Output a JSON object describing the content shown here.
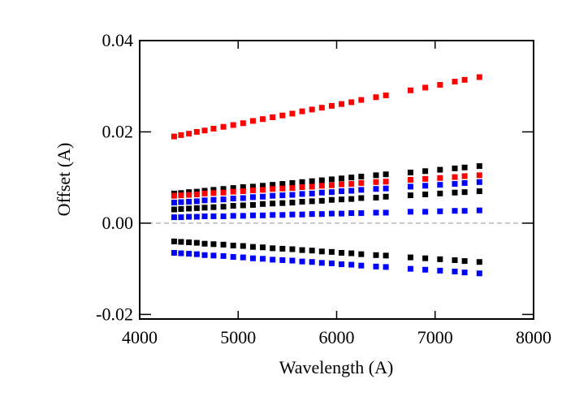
{
  "chart_data": {
    "type": "scatter",
    "xlabel": "Wavelength (A)",
    "ylabel": "Offset (A)",
    "xlim": [
      4000,
      8000
    ],
    "xticks": [
      4000,
      5000,
      6000,
      7000,
      8000
    ],
    "ylim": [
      -0.021,
      0.04
    ],
    "yticks": [
      0.04,
      0.02,
      {
        "value": 0,
        "label": "0.00"
      },
      -0.02
    ],
    "reference_line": 0,
    "x": [
      4350,
      4420,
      4500,
      4580,
      4660,
      4750,
      4850,
      4950,
      5050,
      5150,
      5250,
      5350,
      5450,
      5550,
      5650,
      5750,
      5850,
      5950,
      6050,
      6150,
      6250,
      6400,
      6500,
      6750,
      6900,
      7050,
      7200,
      7300,
      7450
    ],
    "series": [
      {
        "color": "#ff0000",
        "values": [
          0.019,
          0.0193,
          0.0196,
          0.02,
          0.0203,
          0.0207,
          0.0211,
          0.0215,
          0.0219,
          0.0224,
          0.0228,
          0.0232,
          0.0236,
          0.024,
          0.0245,
          0.0249,
          0.0253,
          0.0257,
          0.0261,
          0.0265,
          0.027,
          0.0276,
          0.028,
          0.0291,
          0.0297,
          0.0303,
          0.031,
          0.0314,
          0.032
        ]
      },
      {
        "color": "#000000",
        "values": [
          0.0065,
          0.0066,
          0.0068,
          0.0069,
          0.0071,
          0.0073,
          0.0075,
          0.0077,
          0.0079,
          0.008,
          0.0082,
          0.0084,
          0.0086,
          0.0088,
          0.009,
          0.0092,
          0.0094,
          0.0096,
          0.0098,
          0.01,
          0.0102,
          0.0105,
          0.0107,
          0.0111,
          0.0114,
          0.0117,
          0.012,
          0.0122,
          0.0125
        ]
      },
      {
        "color": "#ff0000",
        "values": [
          0.006,
          0.0061,
          0.0062,
          0.0063,
          0.0065,
          0.0066,
          0.0067,
          0.0069,
          0.007,
          0.0072,
          0.0073,
          0.0075,
          0.0076,
          0.0077,
          0.0079,
          0.008,
          0.0082,
          0.0083,
          0.0085,
          0.0086,
          0.0088,
          0.009,
          0.0091,
          0.0095,
          0.0097,
          0.0099,
          0.0101,
          0.0103,
          0.0105
        ]
      },
      {
        "color": "#0000ff",
        "values": [
          0.0045,
          0.0046,
          0.0047,
          0.0048,
          0.005,
          0.0051,
          0.0052,
          0.0054,
          0.0055,
          0.0057,
          0.0058,
          0.006,
          0.0061,
          0.0062,
          0.0064,
          0.0065,
          0.0067,
          0.0068,
          0.007,
          0.0071,
          0.0073,
          0.0075,
          0.0076,
          0.008,
          0.0082,
          0.0084,
          0.0086,
          0.0088,
          0.009
        ]
      },
      {
        "color": "#000000",
        "values": [
          0.003,
          0.0031,
          0.0032,
          0.0033,
          0.0034,
          0.0035,
          0.0036,
          0.0038,
          0.0039,
          0.004,
          0.0042,
          0.0043,
          0.0044,
          0.0045,
          0.0047,
          0.0048,
          0.0049,
          0.0051,
          0.0052,
          0.0053,
          0.0055,
          0.0056,
          0.0058,
          0.0061,
          0.0063,
          0.0065,
          0.0067,
          0.0068,
          0.007
        ]
      },
      {
        "color": "#0000ff",
        "values": [
          0.0013,
          0.0013,
          0.0014,
          0.0014,
          0.0015,
          0.0015,
          0.0015,
          0.0016,
          0.0016,
          0.0017,
          0.0017,
          0.0018,
          0.0018,
          0.0019,
          0.0019,
          0.002,
          0.002,
          0.0021,
          0.0021,
          0.0022,
          0.0022,
          0.0023,
          0.0023,
          0.0025,
          0.0025,
          0.0026,
          0.0027,
          0.0027,
          0.0028
        ]
      },
      {
        "color": "#000000",
        "values": [
          -0.004,
          -0.0041,
          -0.0042,
          -0.0043,
          -0.0045,
          -0.0046,
          -0.0047,
          -0.0049,
          -0.005,
          -0.0052,
          -0.0053,
          -0.0055,
          -0.0056,
          -0.0057,
          -0.0059,
          -0.006,
          -0.0062,
          -0.0063,
          -0.0065,
          -0.0066,
          -0.0068,
          -0.007,
          -0.0071,
          -0.0075,
          -0.0077,
          -0.0079,
          -0.0081,
          -0.0083,
          -0.0085
        ]
      },
      {
        "color": "#0000ff",
        "values": [
          -0.0065,
          -0.0066,
          -0.0067,
          -0.0068,
          -0.007,
          -0.0071,
          -0.0072,
          -0.0074,
          -0.0075,
          -0.0077,
          -0.0078,
          -0.008,
          -0.0081,
          -0.0082,
          -0.0084,
          -0.0085,
          -0.0087,
          -0.0088,
          -0.009,
          -0.0091,
          -0.0093,
          -0.0095,
          -0.0096,
          -0.01,
          -0.0102,
          -0.0104,
          -0.0106,
          -0.0108,
          -0.011
        ]
      }
    ]
  }
}
